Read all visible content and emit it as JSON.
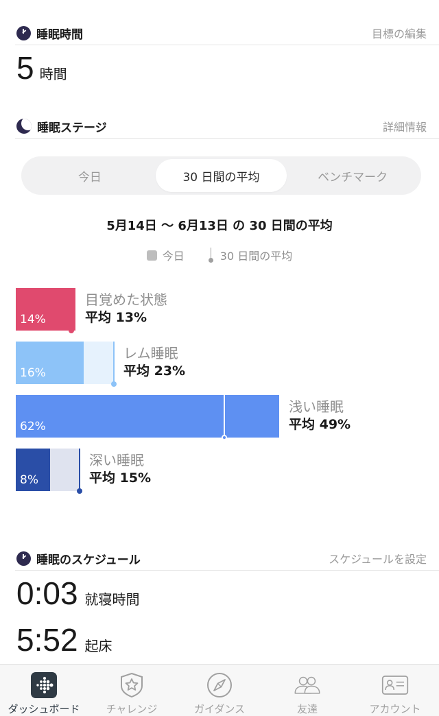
{
  "sleep_duration": {
    "title": "睡眠時間",
    "link": "目標の編集",
    "value": "5",
    "unit": "時間"
  },
  "sleep_stages": {
    "title": "睡眠ステージ",
    "link": "詳細情報",
    "tabs": [
      {
        "label": "今日",
        "active": false
      },
      {
        "label": "30 日間の平均",
        "active": true
      },
      {
        "label": "ベンチマーク",
        "active": false
      }
    ],
    "range_title": "5月14日 〜 6月13日 の 30 日間の平均",
    "legend": {
      "today": "今日",
      "average": "30 日間の平均"
    },
    "stages": [
      {
        "name": "目覚めた状態",
        "today_label": "14%",
        "avg_label": "平均 13%",
        "today_pct": 14,
        "avg_pct": 13,
        "color": "#e04a6e",
        "bg_color": "#f7dbe3",
        "marker_color": "#e04a6e"
      },
      {
        "name": "レム睡眠",
        "today_label": "16%",
        "avg_label": "平均 23%",
        "today_pct": 16,
        "avg_pct": 23,
        "color": "#8dc3f8",
        "bg_color": "#e6f2fd",
        "marker_color": "#8dc3f8"
      },
      {
        "name": "浅い睡眠",
        "today_label": "62%",
        "avg_label": "平均 49%",
        "today_pct": 62,
        "avg_pct": 49,
        "color": "#5e90f2",
        "bg_color": "#dbe6fc",
        "marker_color": "#ffffff"
      },
      {
        "name": "深い睡眠",
        "today_label": "8%",
        "avg_label": "平均 15%",
        "today_pct": 8,
        "avg_pct": 15,
        "color": "#2a4ea7",
        "bg_color": "#dfe3ef",
        "marker_color": "#2a4ea7"
      }
    ]
  },
  "schedule": {
    "title": "睡眠のスケジュール",
    "link": "スケジュールを設定",
    "bedtime": {
      "time": "0:03",
      "label": "就寝時間"
    },
    "wake": {
      "time": "5:52",
      "label": "起床"
    }
  },
  "tabbar": [
    {
      "label": "ダッシュボード",
      "icon": "dashboard-icon",
      "active": true
    },
    {
      "label": "チャレンジ",
      "icon": "challenge-star-icon",
      "active": false
    },
    {
      "label": "ガイダンス",
      "icon": "compass-icon",
      "active": false
    },
    {
      "label": "友達",
      "icon": "friends-icon",
      "active": false
    },
    {
      "label": "アカウント",
      "icon": "account-card-icon",
      "active": false
    }
  ]
}
